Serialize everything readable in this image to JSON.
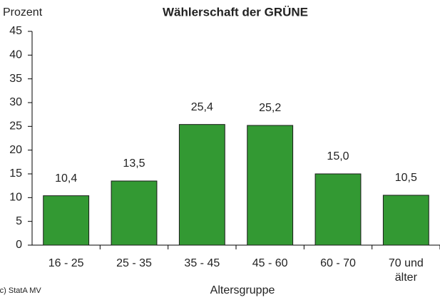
{
  "chart_data": {
    "type": "bar",
    "title": "Wählerschaft der GRÜNE",
    "y_label": "Prozent",
    "x_label": "Altersgruppe",
    "source": "(c) StatA MV",
    "categories": [
      "16 - 25",
      "25 - 35",
      "35 - 45",
      "45 - 60",
      "60 - 70",
      "70 und älter"
    ],
    "values": [
      10.4,
      13.5,
      25.4,
      25.2,
      15.0,
      10.5
    ],
    "value_labels": [
      "10,4",
      "13,5",
      "25,4",
      "25,2",
      "15,0",
      "10,5"
    ],
    "color": "#339933",
    "ylim": [
      0,
      45
    ],
    "yticks": [
      0,
      5,
      10,
      15,
      20,
      25,
      30,
      35,
      40,
      45
    ],
    "grid": false
  }
}
